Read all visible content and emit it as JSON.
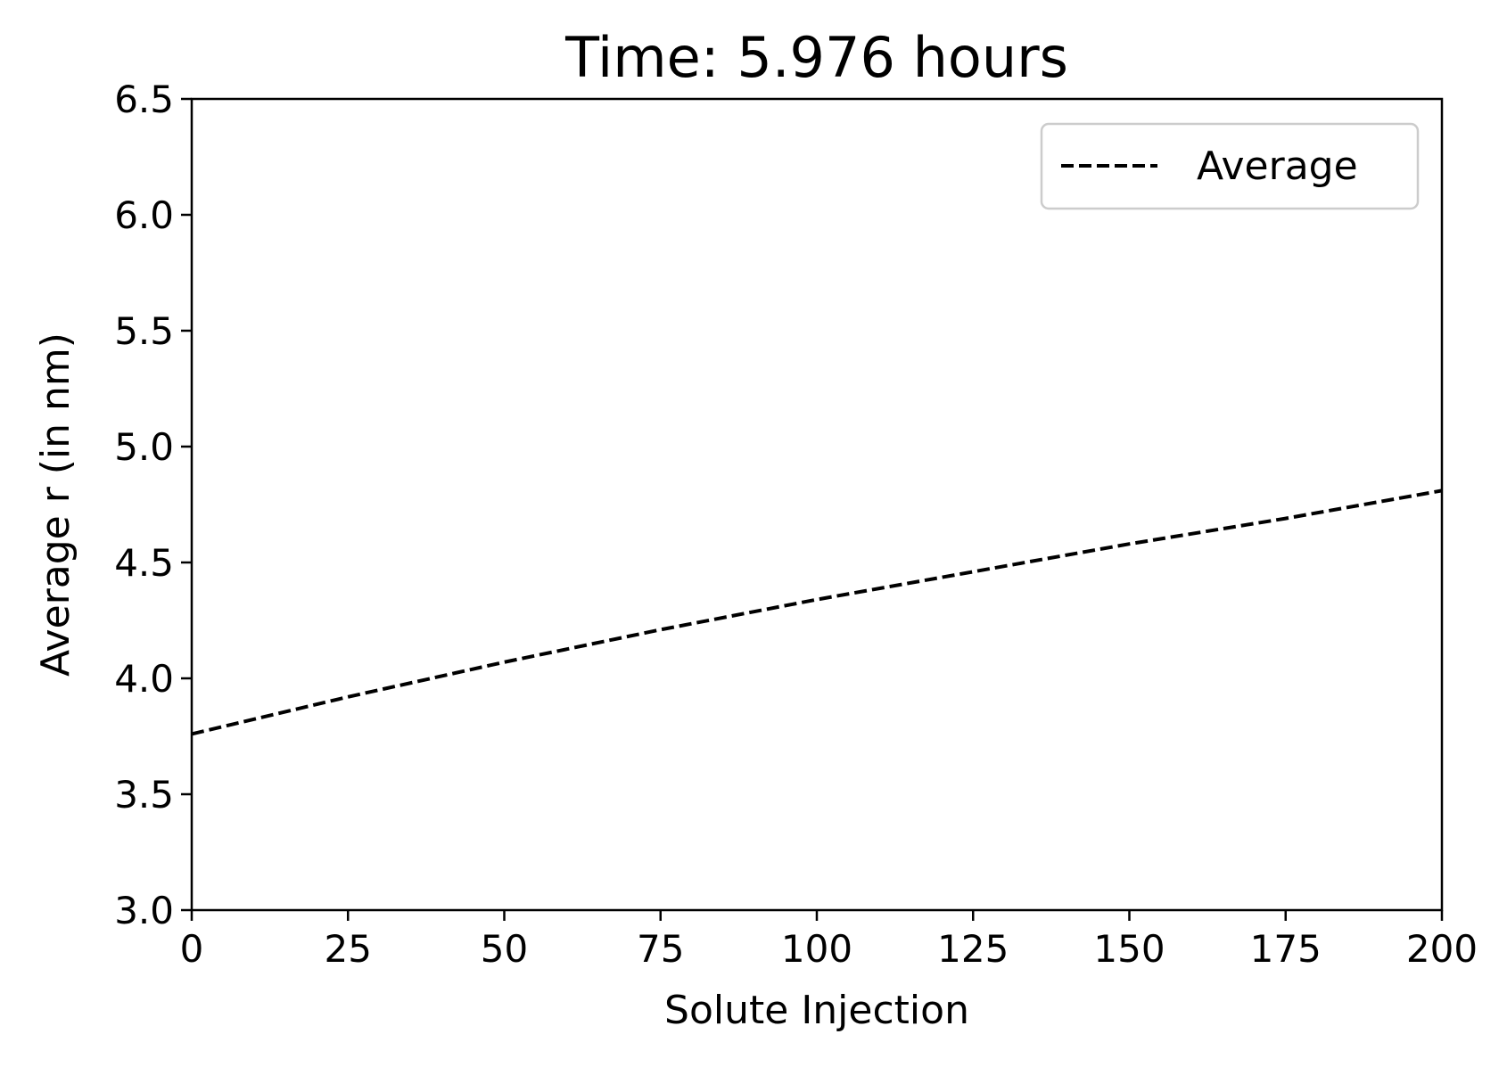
{
  "chart_data": {
    "type": "line",
    "title": "Time: 5.976 hours",
    "xlabel": "Solute Injection",
    "ylabel": "Average r (in nm)",
    "xlim": [
      0,
      200
    ],
    "ylim": [
      3.0,
      6.5
    ],
    "xticks": [
      0,
      25,
      50,
      75,
      100,
      125,
      150,
      175,
      200
    ],
    "xtick_labels": [
      "0",
      "25",
      "50",
      "75",
      "100",
      "125",
      "150",
      "175",
      "200"
    ],
    "yticks": [
      3.0,
      3.5,
      4.0,
      4.5,
      5.0,
      5.5,
      6.0,
      6.5
    ],
    "ytick_labels": [
      "3.0",
      "3.5",
      "4.0",
      "4.5",
      "5.0",
      "5.5",
      "6.0",
      "6.5"
    ],
    "grid": false,
    "legend_position": "top-right",
    "series": [
      {
        "name": "Average",
        "line_style": "dashed",
        "color": "#000000",
        "x": [
          0,
          25,
          50,
          75,
          100,
          125,
          150,
          175,
          200
        ],
        "y": [
          3.76,
          3.92,
          4.07,
          4.21,
          4.34,
          4.46,
          4.58,
          4.69,
          4.81
        ]
      }
    ]
  }
}
